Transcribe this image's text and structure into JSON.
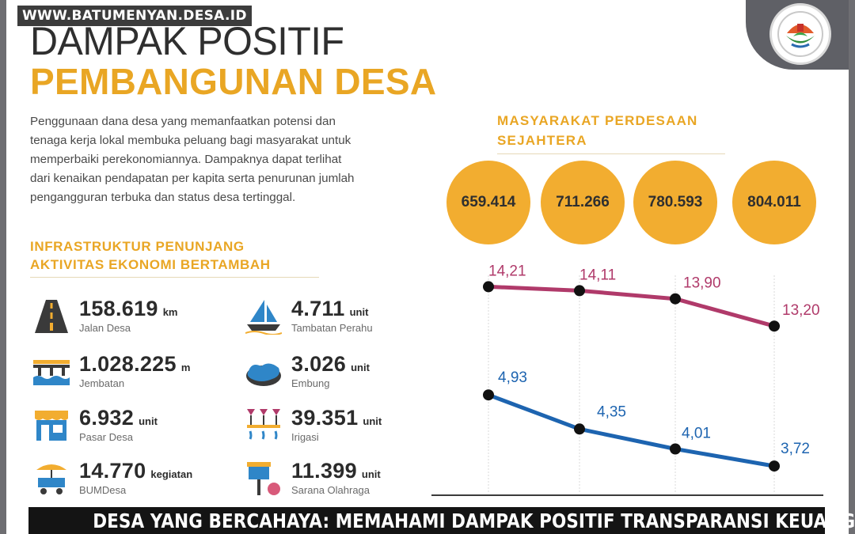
{
  "watermark": "WWW.BATUMENYAN.DESA.ID",
  "title_line1": "DAMPAK POSITIF",
  "title_line2": "PEMBANGUNAN DESA",
  "intro_lines": [
    "Penggunaan dana desa yang memanfaatkan potensi dan",
    "tenaga kerja lokal membuka peluang bagi masyarakat untuk",
    "memperbaiki perekonomiannya. Dampaknya dapat terlihat",
    "dari kenaikan pendapatan per kapita serta penurunan jumlah",
    "pengangguran terbuka dan status desa tertinggal."
  ],
  "infra_heading": [
    "INFRASTRUKTUR PENUNJANG",
    "AKTIVITAS EKONOMI BERTAMBAH"
  ],
  "stats": [
    {
      "value": "158.619",
      "unit": "km",
      "label": "Jalan Desa",
      "icon": "road-icon"
    },
    {
      "value": "1.028.225",
      "unit": "m",
      "label": "Jembatan",
      "icon": "bridge-icon"
    },
    {
      "value": "6.932",
      "unit": "unit",
      "label": "Pasar Desa",
      "icon": "market-icon"
    },
    {
      "value": "14.770",
      "unit": "kegiatan",
      "label": "BUMDesa",
      "icon": "cart-icon"
    },
    {
      "value": "4.711",
      "unit": "unit",
      "label": "Tambatan Perahu",
      "icon": "boat-icon"
    },
    {
      "value": "3.026",
      "unit": "unit",
      "label": "Embung",
      "icon": "pond-icon"
    },
    {
      "value": "39.351",
      "unit": "unit",
      "label": "Irigasi",
      "icon": "irrigation-icon"
    },
    {
      "value": "11.399",
      "unit": "unit",
      "label": "Sarana Olahraga",
      "icon": "sports-icon"
    }
  ],
  "chart_heading": [
    "MASYARAKAT PERDESAAN",
    "SEJAHTERA"
  ],
  "chart_data": {
    "type": "line",
    "bubbles": [
      "659.414",
      "711.266",
      "780.593",
      "804.011"
    ],
    "series": [
      {
        "values": [
          14.21,
          14.11,
          13.9,
          13.2
        ],
        "labels": [
          "14,21",
          "14,11",
          "13,90",
          "13,20"
        ],
        "color": "#b03a6a"
      },
      {
        "values": [
          4.93,
          4.35,
          4.01,
          3.72
        ],
        "labels": [
          "4,93",
          "4,35",
          "4,01",
          "3,72"
        ],
        "color": "#1d64b0"
      }
    ]
  },
  "colors": {
    "accent": "#e9a624",
    "bubble": "#f2ad30",
    "dark": "#2b2b2b"
  },
  "caption": "DESA YANG BERCAHAYA: MEMAHAMI DAMPAK POSITIF TRANSPARANSI KEUANGAN"
}
